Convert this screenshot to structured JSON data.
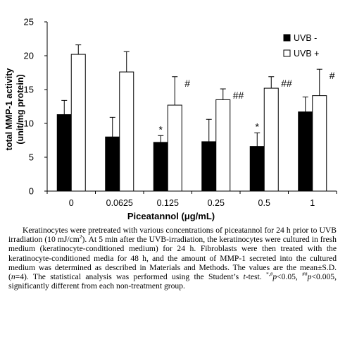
{
  "chart_data": {
    "type": "bar",
    "xlabel": "Piceatannol (μg/mL)",
    "ylabel_line1": "total MMP-1 activity",
    "ylabel_line2": "(unit/mg protein)",
    "ylim": [
      0,
      25
    ],
    "yticks": [
      0,
      5,
      10,
      15,
      20,
      25
    ],
    "categories": [
      "0",
      "0.0625",
      "0.125",
      "0.25",
      "0.5",
      "1"
    ],
    "legend_position": "top-right",
    "series": [
      {
        "name": "UVB -",
        "color": "#000000",
        "values": [
          11.3,
          8.0,
          7.2,
          7.3,
          6.6,
          11.7
        ],
        "errors": [
          2.1,
          2.9,
          1.0,
          3.3,
          2.0,
          2.2
        ],
        "marks": [
          "",
          "",
          "*",
          "",
          "*",
          ""
        ]
      },
      {
        "name": "UVB +",
        "color": "#ffffff",
        "values": [
          20.2,
          17.6,
          12.7,
          13.5,
          15.2,
          14.1
        ],
        "errors": [
          1.4,
          3.0,
          4.2,
          1.6,
          1.7,
          3.9
        ],
        "marks": [
          "",
          "",
          "#",
          "##",
          "##",
          "#"
        ]
      }
    ]
  },
  "caption": {
    "p1": "Keratinocytes were pretreated with various concentrations of piceatannol for 24 h prior to UVB irradiation (10 mJ/cm",
    "sup1": "2",
    "p2": "). At 5 min after the UVB-irradiation, the keratinocytes were cultured in fresh medium (keratinocyte-conditioned medium) for 24 h. Fibroblasts were then treated with the keratinocyte-conditioned media for 48 h, and the amount of MMP-1 secreted into the cultured medium was determined as described in Materials and Methods. The values are the mean±S.D. (",
    "n_italic": "n",
    "p3": "=4). The statistical analysis was performed using the Student’s ",
    "t_italic": "t",
    "p4": "-test. ",
    "sup2": "*,#",
    "p_italic_1": "p",
    "p5": "<0.05, ",
    "sup3": "##",
    "p_italic_2": "p",
    "p6": "<0.005, significantly different from each non-treatment group."
  }
}
